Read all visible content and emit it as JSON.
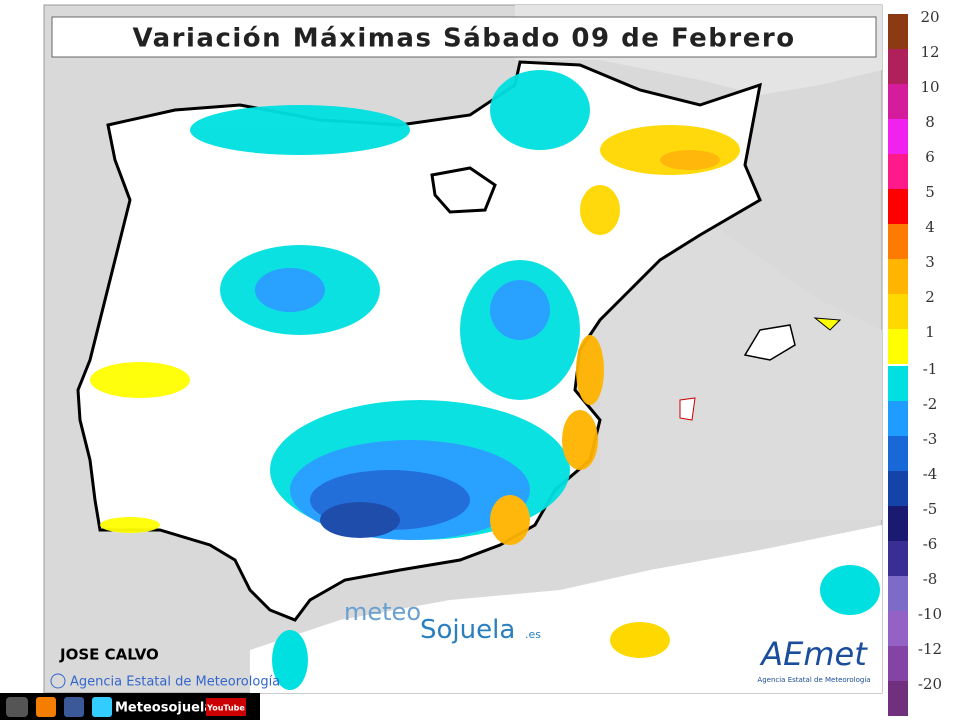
{
  "title": "Variación Máximas Sábado 09 de Febrero",
  "legend": {
    "warm": [
      {
        "label": "20",
        "color": "#8b3a12"
      },
      {
        "label": "12",
        "color": "#b0205a"
      },
      {
        "label": "10",
        "color": "#d41c9c"
      },
      {
        "label": "8",
        "color": "#f022f0"
      },
      {
        "label": "6",
        "color": "#ff1a8c"
      },
      {
        "label": "5",
        "color": "#ff0000"
      },
      {
        "label": "4",
        "color": "#ff7a00"
      },
      {
        "label": "3",
        "color": "#ffb400"
      },
      {
        "label": "2",
        "color": "#ffd800"
      },
      {
        "label": "1",
        "color": "#ffff00"
      }
    ],
    "cold": [
      {
        "label": "-1",
        "color": "#00e0e0"
      },
      {
        "label": "-2",
        "color": "#1e9cff"
      },
      {
        "label": "-3",
        "color": "#1868d8"
      },
      {
        "label": "-4",
        "color": "#1444a8"
      },
      {
        "label": "-5",
        "color": "#1a1a70"
      },
      {
        "label": "-6",
        "color": "#3a2e94"
      },
      {
        "label": "-8",
        "color": "#7c6cc8"
      },
      {
        "label": "-10",
        "color": "#9462c4"
      },
      {
        "label": "-12",
        "color": "#8444a4"
      },
      {
        "label": "-20",
        "color": "#70307e"
      }
    ]
  },
  "author": "JOSE CALVO",
  "copyright": "Agencia Estatal de Meteorología",
  "watermark": {
    "part1": "meteo",
    "part2": "Sojuela",
    "suffix": ".es"
  },
  "logo": {
    "name": "AEmet",
    "subtitle": "Agencia Estatal de Meteorología"
  },
  "footer": {
    "handle": "Meteosojuela",
    "youtube": "YouTube"
  }
}
